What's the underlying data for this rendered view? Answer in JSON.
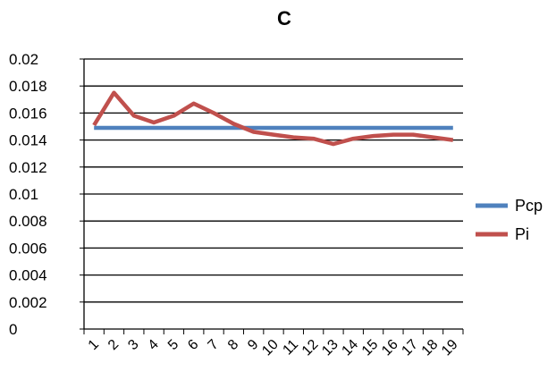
{
  "chart_data": {
    "type": "line",
    "title": "C",
    "xlabel": "",
    "ylabel": "",
    "categories": [
      "1",
      "2",
      "3",
      "4",
      "5",
      "6",
      "7",
      "8",
      "9",
      "10",
      "11",
      "12",
      "13",
      "14",
      "15",
      "16",
      "17",
      "18",
      "19"
    ],
    "y_ticks": [
      "0",
      "0.002",
      "0.004",
      "0.006",
      "0.008",
      "0.01",
      "0.012",
      "0.014",
      "0.016",
      "0.018",
      "0.02"
    ],
    "ylim": [
      0,
      0.02
    ],
    "grid": true,
    "legend_position": "right",
    "series": [
      {
        "name": "Pcp",
        "color": "#4F81BD",
        "values": [
          0.0149,
          0.0149,
          0.0149,
          0.0149,
          0.0149,
          0.0149,
          0.0149,
          0.0149,
          0.0149,
          0.0149,
          0.0149,
          0.0149,
          0.0149,
          0.0149,
          0.0149,
          0.0149,
          0.0149,
          0.0149,
          0.0149
        ]
      },
      {
        "name": "Pi",
        "color": "#C0504D",
        "values": [
          0.0151,
          0.0175,
          0.0158,
          0.0153,
          0.0158,
          0.0167,
          0.016,
          0.0152,
          0.0146,
          0.0144,
          0.0142,
          0.0141,
          0.0137,
          0.0141,
          0.0143,
          0.0144,
          0.0144,
          0.0142,
          0.014
        ]
      }
    ]
  }
}
